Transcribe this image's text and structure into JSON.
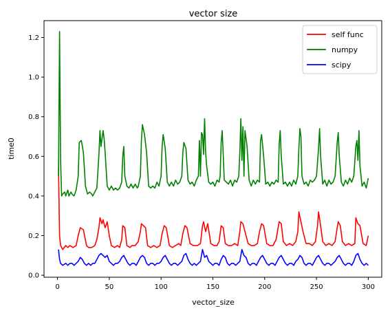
{
  "chart_data": {
    "type": "line",
    "title": "vector size",
    "xlabel": "vector_size",
    "ylabel": "time0",
    "xlim": [
      -13,
      313
    ],
    "ylim": [
      -0.01,
      1.285
    ],
    "xticks": [
      0,
      50,
      100,
      150,
      200,
      250,
      300
    ],
    "yticks": [
      0.0,
      0.2,
      0.4,
      0.6,
      0.8,
      1.0,
      1.2
    ],
    "xtick_labels": [
      "0",
      "50",
      "100",
      "150",
      "200",
      "250",
      "300"
    ],
    "ytick_labels": [
      "0.0",
      "0.2",
      "0.4",
      "0.6",
      "0.8",
      "1.0",
      "1.2"
    ],
    "grid": false,
    "legend_position": "top-right",
    "series": [
      {
        "name": "self func",
        "color": "#ff0000",
        "x": [
          1,
          2,
          3,
          5,
          8,
          10,
          12,
          15,
          18,
          20,
          22,
          25,
          28,
          30,
          33,
          36,
          38,
          40,
          41,
          43,
          44,
          46,
          48,
          50,
          52,
          55,
          58,
          60,
          62,
          63,
          65,
          67,
          70,
          72,
          75,
          78,
          80,
          81,
          83,
          85,
          87,
          90,
          93,
          96,
          99,
          101,
          103,
          105,
          108,
          111,
          114,
          117,
          119,
          121,
          123,
          125,
          128,
          131,
          135,
          138,
          140,
          141,
          143,
          145,
          148,
          151,
          154,
          156,
          158,
          160,
          162,
          165,
          168,
          171,
          174,
          176,
          177,
          179,
          181,
          184,
          187,
          190,
          193,
          195,
          197,
          199,
          202,
          205,
          208,
          211,
          213,
          214,
          216,
          218,
          221,
          224,
          227,
          230,
          232,
          233,
          235,
          237,
          240,
          243,
          246,
          249,
          251,
          252,
          254,
          256,
          259,
          262,
          265,
          268,
          270,
          271,
          273,
          275,
          278,
          281,
          284,
          287,
          288,
          290,
          292,
          295,
          298,
          300
        ],
        "values": [
          0.54,
          0.2,
          0.15,
          0.13,
          0.15,
          0.14,
          0.15,
          0.14,
          0.15,
          0.2,
          0.24,
          0.23,
          0.15,
          0.14,
          0.14,
          0.15,
          0.18,
          0.24,
          0.29,
          0.26,
          0.28,
          0.24,
          0.27,
          0.2,
          0.15,
          0.14,
          0.15,
          0.14,
          0.18,
          0.25,
          0.24,
          0.15,
          0.14,
          0.15,
          0.15,
          0.17,
          0.22,
          0.26,
          0.25,
          0.24,
          0.15,
          0.14,
          0.15,
          0.14,
          0.15,
          0.21,
          0.25,
          0.24,
          0.15,
          0.14,
          0.15,
          0.16,
          0.15,
          0.21,
          0.25,
          0.24,
          0.16,
          0.15,
          0.15,
          0.16,
          0.25,
          0.27,
          0.22,
          0.26,
          0.16,
          0.15,
          0.15,
          0.17,
          0.25,
          0.24,
          0.16,
          0.15,
          0.15,
          0.16,
          0.15,
          0.22,
          0.27,
          0.26,
          0.22,
          0.16,
          0.15,
          0.15,
          0.16,
          0.22,
          0.26,
          0.25,
          0.16,
          0.15,
          0.15,
          0.18,
          0.24,
          0.27,
          0.26,
          0.17,
          0.15,
          0.16,
          0.15,
          0.17,
          0.22,
          0.32,
          0.27,
          0.22,
          0.16,
          0.16,
          0.15,
          0.17,
          0.25,
          0.32,
          0.25,
          0.17,
          0.15,
          0.16,
          0.15,
          0.17,
          0.24,
          0.27,
          0.25,
          0.17,
          0.15,
          0.16,
          0.15,
          0.16,
          0.29,
          0.26,
          0.25,
          0.16,
          0.15,
          0.2
        ]
      },
      {
        "name": "numpy",
        "color": "#008000",
        "x": [
          1,
          2,
          3,
          4,
          5,
          7,
          8,
          10,
          11,
          13,
          14,
          16,
          18,
          20,
          21,
          23,
          25,
          27,
          29,
          31,
          33,
          34,
          36,
          38,
          40,
          41,
          42,
          43,
          44,
          45,
          46,
          48,
          50,
          52,
          54,
          56,
          58,
          60,
          62,
          63,
          64,
          65,
          67,
          69,
          71,
          73,
          75,
          77,
          78,
          80,
          81,
          82,
          84,
          86,
          88,
          90,
          92,
          94,
          96,
          98,
          100,
          101,
          102,
          104,
          106,
          108,
          110,
          112,
          114,
          116,
          118,
          120,
          121,
          122,
          124,
          126,
          128,
          130,
          132,
          134,
          136,
          137,
          138,
          139,
          140,
          141,
          142,
          143,
          144,
          146,
          148,
          150,
          152,
          154,
          156,
          157,
          158,
          159,
          161,
          163,
          165,
          167,
          169,
          171,
          173,
          175,
          176,
          177,
          178,
          179,
          180,
          181,
          183,
          185,
          187,
          189,
          191,
          193,
          195,
          196,
          197,
          199,
          201,
          203,
          205,
          207,
          209,
          211,
          213,
          214,
          215,
          216,
          218,
          220,
          222,
          224,
          226,
          228,
          230,
          232,
          233,
          234,
          235,
          236,
          238,
          240,
          242,
          244,
          246,
          248,
          250,
          252,
          253,
          254,
          256,
          258,
          260,
          262,
          264,
          266,
          268,
          270,
          271,
          272,
          274,
          276,
          278,
          280,
          282,
          284,
          286,
          288,
          289,
          290,
          291,
          292,
          294,
          296,
          298,
          300
        ],
        "values": [
          0.5,
          1.23,
          0.58,
          0.4,
          0.41,
          0.42,
          0.4,
          0.43,
          0.4,
          0.42,
          0.41,
          0.4,
          0.43,
          0.5,
          0.67,
          0.68,
          0.62,
          0.45,
          0.41,
          0.42,
          0.41,
          0.4,
          0.42,
          0.44,
          0.61,
          0.73,
          0.65,
          0.69,
          0.73,
          0.69,
          0.62,
          0.45,
          0.43,
          0.45,
          0.43,
          0.44,
          0.43,
          0.44,
          0.47,
          0.6,
          0.65,
          0.5,
          0.45,
          0.44,
          0.46,
          0.44,
          0.46,
          0.44,
          0.45,
          0.5,
          0.68,
          0.76,
          0.71,
          0.62,
          0.45,
          0.44,
          0.45,
          0.44,
          0.47,
          0.45,
          0.5,
          0.65,
          0.71,
          0.64,
          0.47,
          0.45,
          0.47,
          0.45,
          0.48,
          0.46,
          0.47,
          0.5,
          0.62,
          0.67,
          0.64,
          0.48,
          0.46,
          0.47,
          0.45,
          0.48,
          0.5,
          0.68,
          0.5,
          0.72,
          0.71,
          0.61,
          0.79,
          0.62,
          0.55,
          0.47,
          0.46,
          0.47,
          0.45,
          0.48,
          0.47,
          0.5,
          0.67,
          0.73,
          0.48,
          0.47,
          0.46,
          0.48,
          0.45,
          0.48,
          0.47,
          0.5,
          0.62,
          0.79,
          0.58,
          0.75,
          0.5,
          0.73,
          0.65,
          0.48,
          0.45,
          0.48,
          0.46,
          0.48,
          0.47,
          0.68,
          0.71,
          0.6,
          0.46,
          0.47,
          0.45,
          0.47,
          0.46,
          0.48,
          0.47,
          0.66,
          0.73,
          0.6,
          0.46,
          0.47,
          0.45,
          0.47,
          0.45,
          0.48,
          0.46,
          0.5,
          0.64,
          0.74,
          0.7,
          0.5,
          0.46,
          0.47,
          0.45,
          0.48,
          0.47,
          0.48,
          0.5,
          0.64,
          0.74,
          0.6,
          0.46,
          0.48,
          0.45,
          0.48,
          0.46,
          0.47,
          0.5,
          0.67,
          0.72,
          0.6,
          0.47,
          0.45,
          0.48,
          0.46,
          0.49,
          0.47,
          0.5,
          0.65,
          0.68,
          0.58,
          0.73,
          0.55,
          0.45,
          0.47,
          0.44,
          0.49
        ]
      },
      {
        "name": "scipy",
        "color": "#0000ff",
        "x": [
          1,
          2,
          3,
          5,
          8,
          10,
          12,
          14,
          16,
          18,
          20,
          22,
          24,
          26,
          28,
          30,
          32,
          34,
          36,
          38,
          40,
          42,
          44,
          46,
          48,
          50,
          52,
          54,
          56,
          58,
          60,
          62,
          64,
          66,
          68,
          70,
          72,
          74,
          76,
          78,
          80,
          82,
          84,
          86,
          88,
          90,
          92,
          94,
          96,
          98,
          100,
          102,
          104,
          106,
          108,
          110,
          112,
          114,
          116,
          118,
          120,
          122,
          124,
          126,
          128,
          130,
          132,
          134,
          136,
          138,
          140,
          142,
          144,
          146,
          148,
          150,
          152,
          154,
          156,
          158,
          160,
          162,
          164,
          166,
          168,
          170,
          172,
          174,
          176,
          178,
          180,
          182,
          184,
          186,
          188,
          190,
          192,
          194,
          196,
          198,
          200,
          202,
          204,
          206,
          208,
          210,
          212,
          214,
          216,
          218,
          220,
          222,
          224,
          226,
          228,
          230,
          232,
          234,
          236,
          238,
          240,
          242,
          244,
          246,
          248,
          250,
          252,
          254,
          256,
          258,
          260,
          262,
          264,
          266,
          268,
          270,
          272,
          274,
          276,
          278,
          280,
          282,
          284,
          286,
          288,
          290,
          292,
          294,
          296,
          298,
          300
        ],
        "values": [
          0.13,
          0.08,
          0.06,
          0.05,
          0.06,
          0.05,
          0.06,
          0.06,
          0.05,
          0.06,
          0.07,
          0.09,
          0.08,
          0.06,
          0.05,
          0.06,
          0.05,
          0.06,
          0.06,
          0.08,
          0.1,
          0.11,
          0.1,
          0.09,
          0.1,
          0.07,
          0.06,
          0.05,
          0.06,
          0.06,
          0.07,
          0.09,
          0.1,
          0.08,
          0.06,
          0.05,
          0.06,
          0.06,
          0.05,
          0.07,
          0.09,
          0.1,
          0.09,
          0.06,
          0.05,
          0.06,
          0.06,
          0.05,
          0.06,
          0.06,
          0.07,
          0.09,
          0.1,
          0.08,
          0.06,
          0.05,
          0.06,
          0.06,
          0.05,
          0.06,
          0.07,
          0.1,
          0.11,
          0.08,
          0.06,
          0.05,
          0.06,
          0.05,
          0.06,
          0.07,
          0.13,
          0.09,
          0.1,
          0.07,
          0.06,
          0.05,
          0.06,
          0.06,
          0.05,
          0.08,
          0.1,
          0.09,
          0.06,
          0.05,
          0.06,
          0.06,
          0.05,
          0.06,
          0.07,
          0.13,
          0.1,
          0.09,
          0.06,
          0.05,
          0.06,
          0.06,
          0.05,
          0.07,
          0.09,
          0.1,
          0.08,
          0.06,
          0.05,
          0.06,
          0.06,
          0.05,
          0.07,
          0.09,
          0.1,
          0.08,
          0.06,
          0.05,
          0.06,
          0.06,
          0.05,
          0.07,
          0.08,
          0.1,
          0.09,
          0.06,
          0.05,
          0.06,
          0.06,
          0.05,
          0.07,
          0.09,
          0.1,
          0.08,
          0.06,
          0.05,
          0.06,
          0.06,
          0.05,
          0.06,
          0.07,
          0.09,
          0.1,
          0.08,
          0.06,
          0.05,
          0.06,
          0.06,
          0.05,
          0.07,
          0.1,
          0.11,
          0.08,
          0.06,
          0.05,
          0.06,
          0.05
        ]
      }
    ]
  }
}
